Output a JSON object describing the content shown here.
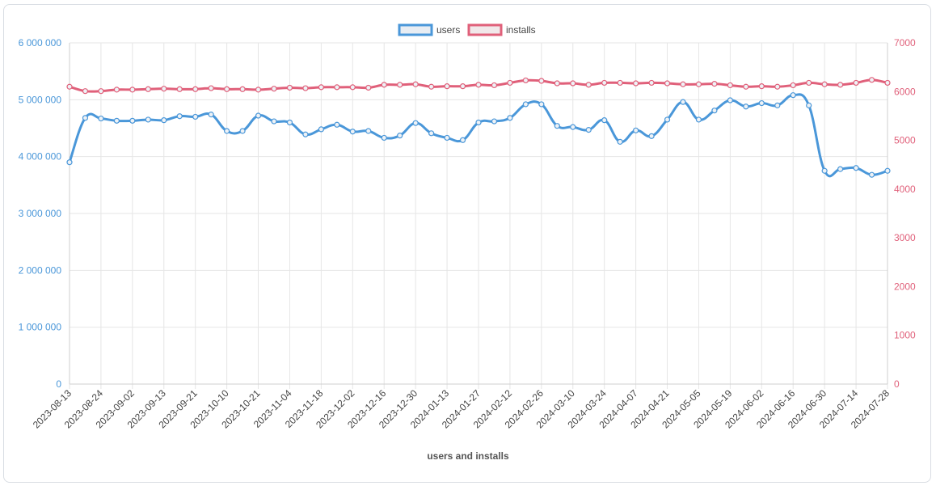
{
  "chart_data": {
    "type": "line",
    "xlabel": "users and installs",
    "legend_position": "top",
    "colors": {
      "users": "#4a97d9",
      "installs": "#e0607a",
      "grid": "#e6e6e6"
    },
    "x_tick_labels": [
      "2023-08-13",
      "2023-08-24",
      "2023-09-02",
      "2023-09-13",
      "2023-09-21",
      "2023-10-10",
      "2023-10-21",
      "2023-11-04",
      "2023-11-18",
      "2023-12-02",
      "2023-12-16",
      "2023-12-30",
      "2024-01-13",
      "2024-01-27",
      "2024-02-12",
      "2024-02-26",
      "2024-03-10",
      "2024-03-24",
      "2024-04-07",
      "2024-04-21",
      "2024-05-05",
      "2024-05-19",
      "2024-06-02",
      "2024-06-16",
      "2024-06-30",
      "2024-07-14",
      "2024-07-28"
    ],
    "y_left": {
      "range": [
        0,
        6000000
      ],
      "ticks": [
        "0",
        "1 000 000",
        "2 000 000",
        "3 000 000",
        "4 000 000",
        "5 000 000",
        "6 000 000"
      ]
    },
    "y_right": {
      "range": [
        0,
        7000
      ],
      "ticks": [
        "0",
        "1000",
        "2000",
        "3000",
        "4000",
        "5000",
        "6000",
        "7000"
      ]
    },
    "series": [
      {
        "name": "users",
        "axis": "left",
        "values": [
          3900000,
          4680000,
          4670000,
          4630000,
          4630000,
          4650000,
          4640000,
          4710000,
          4700000,
          4740000,
          4450000,
          4450000,
          4720000,
          4620000,
          4600000,
          4390000,
          4480000,
          4560000,
          4440000,
          4450000,
          4330000,
          4370000,
          4590000,
          4410000,
          4330000,
          4290000,
          4600000,
          4620000,
          4680000,
          4920000,
          4920000,
          4540000,
          4520000,
          4470000,
          4640000,
          4260000,
          4460000,
          4360000,
          4650000,
          4960000,
          4650000,
          4810000,
          4990000,
          4880000,
          4940000,
          4900000,
          5080000,
          4900000,
          3750000,
          3780000,
          3800000,
          3680000,
          3750000
        ]
      },
      {
        "name": "installs",
        "axis": "right",
        "values": [
          6100,
          6010,
          6010,
          6040,
          6040,
          6050,
          6060,
          6050,
          6050,
          6070,
          6050,
          6050,
          6040,
          6060,
          6080,
          6070,
          6090,
          6090,
          6090,
          6080,
          6140,
          6140,
          6150,
          6100,
          6110,
          6110,
          6140,
          6130,
          6180,
          6230,
          6220,
          6170,
          6170,
          6140,
          6180,
          6180,
          6170,
          6180,
          6170,
          6150,
          6150,
          6160,
          6130,
          6100,
          6110,
          6100,
          6130,
          6180,
          6150,
          6140,
          6180,
          6240,
          6180
        ]
      }
    ]
  }
}
